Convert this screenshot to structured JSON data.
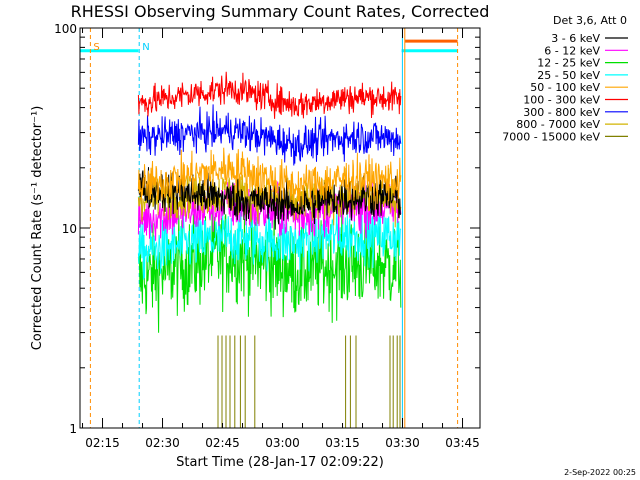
{
  "chart_data": {
    "type": "line",
    "title": "RHESSI Observing Summary Count Rates, Corrected",
    "xlabel": "Start Time (28-Jan-17 02:09:22)",
    "ylabel": "Corrected Count Rate (s⁻¹ detector⁻¹)",
    "xlim_minutes": [
      0,
      100
    ],
    "ylim": [
      1,
      100
    ],
    "yscale": "log",
    "x_ticks": [
      {
        "label": "02:15",
        "minutes": 5.63
      },
      {
        "label": "02:30",
        "minutes": 20.63
      },
      {
        "label": "02:45",
        "minutes": 35.63
      },
      {
        "label": "03:00",
        "minutes": 50.63
      },
      {
        "label": "03:15",
        "minutes": 65.63
      },
      {
        "label": "03:30",
        "minutes": 80.63
      },
      {
        "label": "03:45",
        "minutes": 95.63
      }
    ],
    "y_ticks": [
      {
        "label": "1",
        "value": 1
      },
      {
        "label": "10",
        "value": 10
      },
      {
        "label": "100",
        "value": 100
      }
    ],
    "legend_header": "Det 3,6, Att 0",
    "data_window_minutes": [
      14.6,
      80.2
    ],
    "series": [
      {
        "name": "3 - 6 keV",
        "color": "#000000",
        "level": [
          16,
          14,
          13
        ],
        "noise": 0.07
      },
      {
        "name": "6 - 12 keV",
        "color": "#ff00ff",
        "level": [
          11,
          13,
          11.5
        ],
        "noise": 0.08
      },
      {
        "name": "12 - 25 keV",
        "color": "#00e000",
        "level": [
          5.5,
          7.5,
          6
        ],
        "noise": 0.15
      },
      {
        "name": "25 - 50 keV",
        "color": "#00ffff",
        "level": [
          7.5,
          9,
          8.5
        ],
        "noise": 0.09
      },
      {
        "name": "50 - 100 keV",
        "color": "#ffa500",
        "level": [
          16,
          20,
          16
        ],
        "noise": 0.07
      },
      {
        "name": "100 - 300 keV",
        "color": "#ff0000",
        "level": [
          42,
          50,
          41
        ],
        "noise": 0.05
      },
      {
        "name": "300 - 800 keV",
        "color": "#0000ff",
        "level": [
          28,
          31,
          26
        ],
        "noise": 0.06
      },
      {
        "name": "800 - 7000 keV",
        "color": "#d2b400",
        "level": [
          14,
          15,
          13
        ],
        "noise": 0.07
      },
      {
        "name": "7000 - 15000 keV",
        "color": "#808000",
        "level": [
          1,
          1,
          1
        ],
        "noise": 0
      }
    ],
    "spike_series": {
      "color": "#808000",
      "base": 1,
      "spikes": [
        {
          "minutes": 34.5,
          "value": 2.9
        },
        {
          "minutes": 35.5,
          "value": 2.9
        },
        {
          "minutes": 36.5,
          "value": 2.9
        },
        {
          "minutes": 37.5,
          "value": 2.9
        },
        {
          "minutes": 38.7,
          "value": 2.9
        },
        {
          "minutes": 40.1,
          "value": 2.9
        },
        {
          "minutes": 41.3,
          "value": 2.9
        },
        {
          "minutes": 43.7,
          "value": 2.9
        },
        {
          "minutes": 66.4,
          "value": 2.9
        },
        {
          "minutes": 67.6,
          "value": 2.9
        },
        {
          "minutes": 69.0,
          "value": 2.9
        },
        {
          "minutes": 77.5,
          "value": 2.9
        },
        {
          "minutes": 78.3,
          "value": 2.9
        },
        {
          "minutes": 79.3,
          "value": 2.9
        },
        {
          "minutes": 80.0,
          "value": 2.9
        }
      ]
    },
    "flags": [
      {
        "label": "S",
        "color": "#ff8c00",
        "marker_minutes": 2.6
      },
      {
        "label": "N",
        "color": "#00d0ff",
        "marker_minutes": 14.8
      }
    ],
    "state_bars": [
      {
        "color": "#00ffff",
        "from_minutes": 0,
        "to_minutes": 14.6,
        "value": 77
      },
      {
        "color": "#00ffff",
        "from_minutes": 80.4,
        "to_minutes": 94.4,
        "value": 77
      },
      {
        "color": "#ff6000",
        "from_minutes": 81.2,
        "to_minutes": 94.4,
        "value": 86
      }
    ],
    "vertical_markers": [
      {
        "color": "#ff8c00",
        "style": "dashed",
        "minutes": 2.6
      },
      {
        "color": "#00d0ff",
        "style": "dashed",
        "minutes": 14.8
      },
      {
        "color": "#00d0ff",
        "style": "solid",
        "minutes": 80.6
      },
      {
        "color": "#ff8c00",
        "style": "solid",
        "minutes": 81.2
      },
      {
        "color": "#ff8c00",
        "style": "dashed",
        "minutes": 94.4
      }
    ]
  },
  "footer": {
    "date": "2-Sep-2022 00:25"
  }
}
